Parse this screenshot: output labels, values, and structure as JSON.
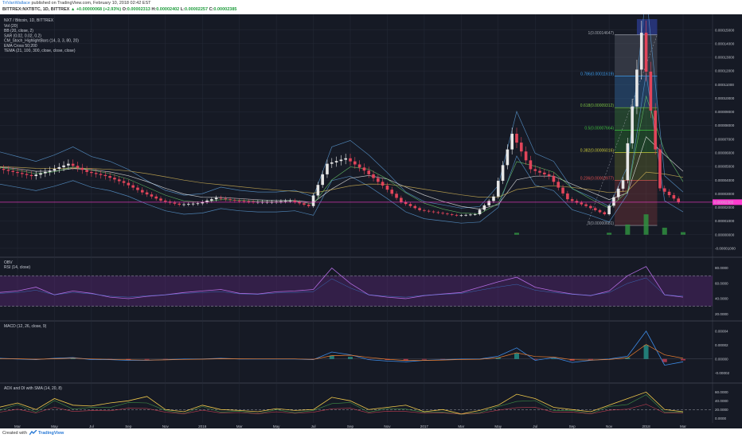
{
  "header": {
    "user": "TriVanWallace",
    "published": "published on TradingView.com, February 10, 2018 02:42 EST",
    "symbol_line": "BITTREX:NXTBTC, 1D, BITTREX",
    "change": "▲ +0.00000068 (+2.93%)",
    "open_label": "O:",
    "open": "0.00002313",
    "high_label": "H:",
    "high": "0.00002402",
    "low_label": "L:",
    "low": "0.00002257",
    "close_label": "C:",
    "close": "0.00002385"
  },
  "footer": {
    "created": "Created with",
    "brand": "TradingView"
  },
  "colors": {
    "panel_bg": "#161a25",
    "grid": "#262b38",
    "candle_up": "#e6e6e6",
    "candle_down": "#e2455a",
    "bb": "#5b9bd5",
    "ema50": "#e8e8e8",
    "ema200": "#d6b656",
    "tema": "#6fd66f",
    "price_line": "#ff3ccf",
    "rsi": "#b16be0",
    "macd": "#3d8be6",
    "signal": "#f08030",
    "adx": "#f0c94a",
    "di_plus": "#4caf50",
    "di_minus": "#e2455a"
  },
  "chart_data": {
    "type": "line",
    "title": "NXT / Bitcoin, 1D, BITTREX",
    "legend_items": [
      "Vol (20)",
      "BB (20, close, 2)",
      "SAR (0.02, 0.02, 0.2)",
      "CM_Stoch_HighlightBars (14, 3, 3, 80, 20)",
      "EMA Cross 50;200",
      "TEMA (21, 100, 300, close, close, close)"
    ],
    "x_ticks": [
      "Mar",
      "May",
      "Jul",
      "Sep",
      "Nov",
      "2016",
      "Mar",
      "May",
      "Jul",
      "Sep",
      "Nov",
      "2017",
      "Mar",
      "May",
      "Jul",
      "Sep",
      "Nov",
      "2018",
      "Mar"
    ],
    "y_ticks": [
      "0.00015000",
      "0.00014000",
      "0.00013000",
      "0.00012000",
      "0.00011000",
      "0.00010000",
      "0.00009000",
      "0.00008000",
      "0.00007000",
      "0.00006000",
      "0.00005000",
      "0.00004000",
      "0.00003000",
      "0.00002000",
      "0.00001000",
      "0.00000000",
      "-0.00001000"
    ],
    "y_tick_values": [
      15,
      14,
      13,
      12,
      11,
      10,
      9,
      8,
      7,
      6,
      5,
      4,
      3,
      2,
      1,
      0,
      -1
    ],
    "ylim": [
      -1.3,
      15.8
    ],
    "last_price_label": "0.00002385",
    "last_price": 2.385,
    "price_series_x_month": [
      0,
      1,
      2,
      3,
      4,
      5,
      6,
      7,
      8,
      9,
      10,
      11,
      12,
      13,
      14,
      15,
      16,
      17,
      18,
      19,
      20,
      21,
      22,
      23,
      24,
      25,
      26,
      27,
      28,
      29,
      30,
      31,
      32,
      33,
      34,
      35,
      36,
      37,
      38
    ],
    "price_series_values": [
      5.0,
      4.9,
      4.6,
      4.3,
      4.7,
      5.2,
      4.6,
      4.3,
      3.8,
      3.1,
      2.5,
      2.2,
      2.3,
      2.7,
      2.5,
      2.4,
      2.4,
      2.5,
      2.1,
      5.2,
      5.6,
      4.7,
      3.6,
      2.4,
      1.8,
      1.6,
      1.4,
      1.5,
      2.8,
      7.4,
      4.8,
      4.3,
      2.6,
      2.1,
      1.5,
      4.0,
      14.8,
      3.4,
      2.4
    ],
    "fib_levels": [
      {
        "label": "1(0.00014647)",
        "value": 14.647,
        "color": "#a0a4ad"
      },
      {
        "label": "0.786(0.00011619)",
        "value": 11.619,
        "color": "#3d9be9"
      },
      {
        "label": "0.618(0.00009312)",
        "value": 9.312,
        "color": "#7bc142"
      },
      {
        "label": "0.5(0.00007664)",
        "value": 7.664,
        "color": "#3fbf3f"
      },
      {
        "label": "0.382(0.00006016)",
        "value": 6.016,
        "color": "#c9c93a"
      },
      {
        "label": "0.236(0.00003977)",
        "value": 3.977,
        "color": "#e25050"
      },
      {
        "label": "0(0.00000681)",
        "value": 0.681,
        "color": "#a0a4ad"
      }
    ],
    "obv_panel": {
      "labels": [
        "OBV",
        "RSI (14, close)"
      ],
      "y_ticks": [
        "80.0000",
        "60.0000",
        "40.0000",
        "20.0000"
      ],
      "y_tick_values": [
        80,
        60,
        40,
        20
      ],
      "ylim": [
        15,
        90
      ],
      "band": [
        30,
        70
      ],
      "rsi_values": [
        52,
        48,
        50,
        55,
        45,
        50,
        47,
        42,
        40,
        43,
        45,
        48,
        50,
        52,
        47,
        46,
        49,
        50,
        52,
        80,
        60,
        45,
        42,
        40,
        44,
        46,
        48,
        55,
        62,
        68,
        55,
        50,
        46,
        44,
        50,
        70,
        82,
        45,
        42
      ]
    },
    "macd_panel": {
      "label": "MACD (12, 26, close, 9)",
      "y_ticks": [
        "0.00004",
        "0.00002",
        "0.00000",
        "-0.00002"
      ],
      "y_tick_values": [
        4,
        2,
        0,
        -2
      ],
      "ylim": [
        -3,
        5
      ],
      "macd_values": [
        0,
        0.1,
        0,
        -0.1,
        0.1,
        0.2,
        -0.1,
        -0.1,
        -0.2,
        -0.2,
        -0.1,
        0,
        0,
        0.1,
        0,
        0,
        0,
        0,
        -0.1,
        1.0,
        0.6,
        -0.1,
        -0.3,
        -0.4,
        -0.2,
        -0.1,
        0,
        0,
        0.4,
        1.6,
        -0.2,
        0.2,
        -0.5,
        -0.2,
        0,
        0.4,
        4.0,
        -0.9,
        -0.4
      ]
    },
    "adx_panel": {
      "label": "ADX and DI with SMA (14, 20, 8)",
      "y_ticks": [
        "60.0000",
        "40.0000",
        "20.0000",
        "0.0000"
      ],
      "y_tick_values": [
        60,
        40,
        20,
        0
      ],
      "ylim": [
        -5,
        75
      ],
      "ref_line": 20,
      "adx_values": [
        30,
        25,
        35,
        20,
        45,
        30,
        28,
        35,
        40,
        50,
        20,
        15,
        30,
        20,
        18,
        15,
        22,
        18,
        20,
        48,
        40,
        20,
        25,
        30,
        15,
        20,
        10,
        18,
        30,
        55,
        45,
        25,
        20,
        15,
        30,
        45,
        60,
        20,
        15
      ]
    }
  }
}
